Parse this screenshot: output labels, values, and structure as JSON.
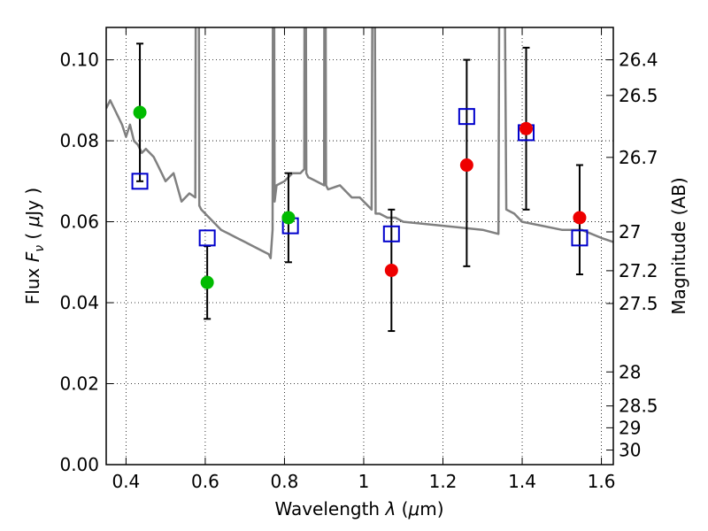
{
  "chart_data": {
    "type": "scatter",
    "title": "",
    "xlabel": "Wavelength λ (μm)",
    "ylabel": "Flux F_ν (μJy)",
    "ylabel_right": "Magnitude (AB)",
    "xlim": [
      0.35,
      1.63
    ],
    "ylim": [
      0.0,
      0.108
    ],
    "grid": true,
    "x_ticks": [
      {
        "value": 0.4,
        "label": "0.4"
      },
      {
        "value": 0.6,
        "label": "0.6"
      },
      {
        "value": 0.8,
        "label": "0.8"
      },
      {
        "value": 1.0,
        "label": "1"
      },
      {
        "value": 1.2,
        "label": "1.2"
      },
      {
        "value": 1.4,
        "label": "1.4"
      },
      {
        "value": 1.6,
        "label": "1.6"
      }
    ],
    "y_ticks": [
      {
        "value": 0.0,
        "label": "0.00"
      },
      {
        "value": 0.02,
        "label": "0.02"
      },
      {
        "value": 0.04,
        "label": "0.04"
      },
      {
        "value": 0.06,
        "label": "0.06"
      },
      {
        "value": 0.08,
        "label": "0.08"
      },
      {
        "value": 0.1,
        "label": "0.10"
      }
    ],
    "mag_ticks": [
      {
        "flux": 0.1,
        "label": "26.4"
      },
      {
        "flux": 0.0912,
        "label": "26.5"
      },
      {
        "flux": 0.0759,
        "label": "26.7"
      },
      {
        "flux": 0.0575,
        "label": "27"
      },
      {
        "flux": 0.0479,
        "label": "27.2"
      },
      {
        "flux": 0.0398,
        "label": "27.5"
      },
      {
        "flux": 0.0229,
        "label": "28"
      },
      {
        "flux": 0.0145,
        "label": "28.5"
      },
      {
        "flux": 0.0091,
        "label": "29"
      },
      {
        "flux": 0.0036,
        "label": "30"
      }
    ],
    "series": [
      {
        "kind": "line",
        "color": "#808080",
        "x": [
          0.35,
          0.36,
          0.37,
          0.38,
          0.39,
          0.4,
          0.41,
          0.42,
          0.43,
          0.44,
          0.45,
          0.46,
          0.47,
          0.48,
          0.49,
          0.5,
          0.52,
          0.54,
          0.56,
          0.575,
          0.578,
          0.582,
          0.585,
          0.59,
          0.6,
          0.62,
          0.64,
          0.66,
          0.68,
          0.7,
          0.72,
          0.74,
          0.76,
          0.765,
          0.77,
          0.772,
          0.775,
          0.78,
          0.8,
          0.82,
          0.84,
          0.85,
          0.852,
          0.855,
          0.86,
          0.88,
          0.9,
          0.902,
          0.905,
          0.91,
          0.94,
          0.97,
          0.99,
          1.0,
          1.01,
          1.02,
          1.025,
          1.03,
          1.04,
          1.06,
          1.08,
          1.1,
          1.2,
          1.3,
          1.34,
          1.345,
          1.35,
          1.36,
          1.38,
          1.4,
          1.45,
          1.5,
          1.55,
          1.6,
          1.63
        ],
        "y": [
          0.088,
          0.09,
          0.088,
          0.086,
          0.084,
          0.081,
          0.084,
          0.08,
          0.079,
          0.077,
          0.078,
          0.077,
          0.076,
          0.074,
          0.072,
          0.07,
          0.072,
          0.065,
          0.067,
          0.066,
          0.2,
          0.2,
          0.064,
          0.063,
          0.062,
          0.06,
          0.058,
          0.057,
          0.056,
          0.055,
          0.054,
          0.053,
          0.052,
          0.051,
          0.058,
          0.2,
          0.065,
          0.069,
          0.07,
          0.072,
          0.072,
          0.073,
          0.2,
          0.072,
          0.071,
          0.07,
          0.069,
          0.2,
          0.069,
          0.068,
          0.069,
          0.066,
          0.066,
          0.065,
          0.064,
          0.063,
          0.2,
          0.062,
          0.062,
          0.061,
          0.061,
          0.06,
          0.059,
          0.058,
          0.057,
          0.2,
          0.2,
          0.063,
          0.062,
          0.06,
          0.059,
          0.058,
          0.058,
          0.056,
          0.055
        ]
      },
      {
        "kind": "scatter",
        "name": "green points",
        "color": "#00bb00",
        "marker": "circle",
        "x": [
          0.435,
          0.605,
          0.81
        ],
        "y": [
          0.087,
          0.045,
          0.061
        ]
      },
      {
        "kind": "scatter",
        "name": "red points",
        "color": "#ee0000",
        "marker": "circle",
        "x": [
          1.07,
          1.26,
          1.41,
          1.545
        ],
        "y": [
          0.048,
          0.074,
          0.083,
          0.061
        ]
      },
      {
        "kind": "scatter",
        "name": "blue squares",
        "color": "#0000cc",
        "marker": "open-square",
        "x": [
          0.435,
          0.605,
          0.815,
          1.07,
          1.26,
          1.41,
          1.545
        ],
        "y": [
          0.07,
          0.056,
          0.059,
          0.057,
          0.086,
          0.082,
          0.056
        ]
      },
      {
        "kind": "errorbar",
        "color": "#000000",
        "x": [
          0.435,
          0.605,
          0.81,
          1.07,
          1.26,
          1.41,
          1.545
        ],
        "y_low": [
          0.07,
          0.036,
          0.05,
          0.033,
          0.049,
          0.063,
          0.047
        ],
        "y_high": [
          0.104,
          0.054,
          0.072,
          0.063,
          0.1,
          0.103,
          0.074
        ]
      }
    ]
  }
}
